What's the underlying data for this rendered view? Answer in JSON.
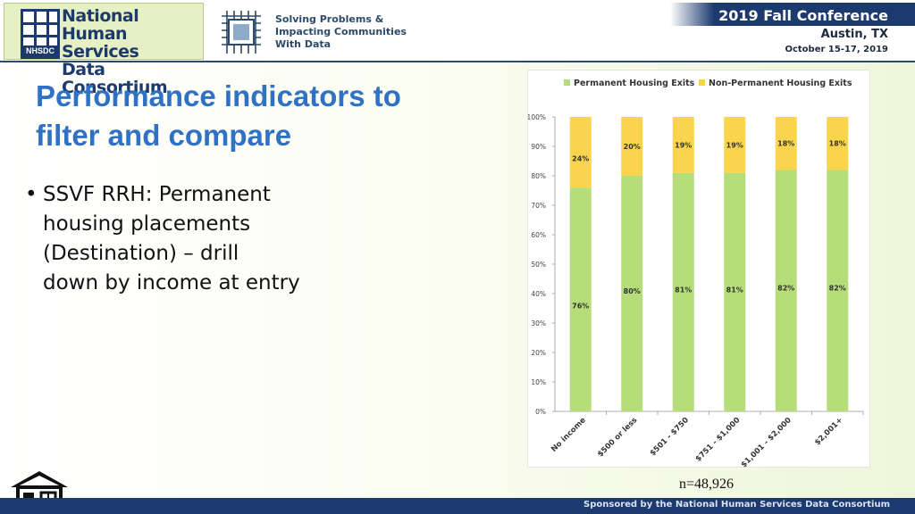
{
  "header": {
    "logo_text": [
      "National",
      "Human Services",
      "Data Consortium"
    ],
    "logo_abbr": "NHSDC",
    "tagline": [
      "Solving Problems &",
      "Impacting Communities",
      "With Data"
    ],
    "conference_title": "2019 Fall Conference",
    "conference_city": "Austin, TX",
    "conference_dates": "October 15-17, 2019"
  },
  "slide": {
    "title": [
      "Performance indicators to",
      "filter and compare"
    ],
    "bullet_marker": "•",
    "bullet_lines": [
      "SSVF RRH: Permanent",
      "housing placements",
      "(Destination) – drill",
      "down by income at entry"
    ],
    "sample_size": "n=48,926"
  },
  "footer": {
    "text": "Sponsored by the National Human Services Data Consortium"
  },
  "colors": {
    "permanent": "#b5de7a",
    "non_permanent": "#f9d44c",
    "title_blue": "#2f72c4",
    "navy": "#1c3a6e"
  },
  "chart_data": {
    "type": "bar",
    "stacked": true,
    "percent": true,
    "categories": [
      "No income",
      "$500 or less",
      "$501 - $750",
      "$751 - $1,000",
      "$1,001 - $2,000",
      "$2,001+"
    ],
    "series": [
      {
        "name": "Permanent Housing Exits",
        "values": [
          76,
          80,
          81,
          81,
          82,
          82
        ],
        "labels": [
          "76%",
          "80%",
          "81%",
          "81%",
          "82%",
          "82%"
        ]
      },
      {
        "name": "Non-Permanent Housing Exits",
        "values": [
          24,
          20,
          19,
          19,
          18,
          18
        ],
        "labels": [
          "24%",
          "20%",
          "19%",
          "19%",
          "18%",
          "18%"
        ]
      }
    ],
    "ylim": [
      0,
      100
    ],
    "yticks": [
      "0%",
      "10%",
      "20%",
      "30%",
      "40%",
      "50%",
      "60%",
      "70%",
      "80%",
      "90%",
      "100%"
    ],
    "legend_position": "top",
    "grid": false
  }
}
